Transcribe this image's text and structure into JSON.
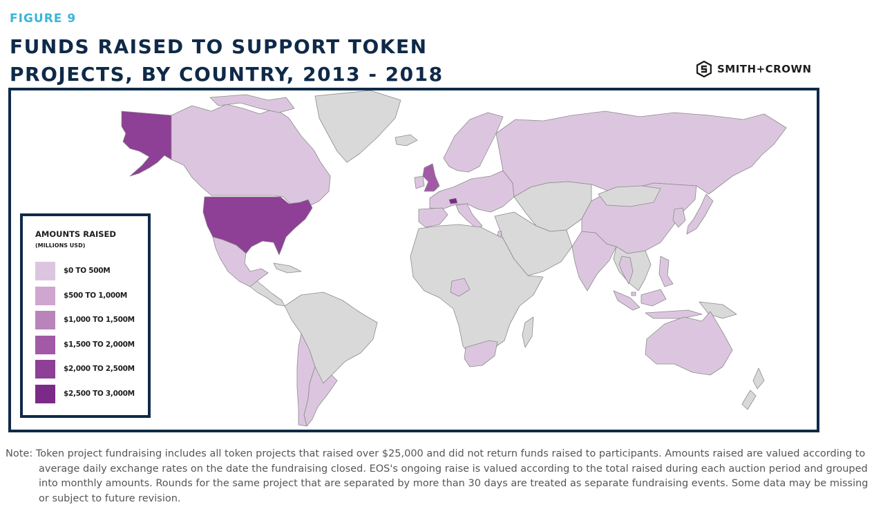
{
  "figure_label": "FIGURE 9",
  "title_lines": [
    "FUNDS RAISED TO SUPPORT TOKEN",
    "PROJECTS, BY COUNTRY, 2013 - 2018"
  ],
  "brand": {
    "name": "SMITH+CROWN",
    "icon": "smith-crown-logo-icon"
  },
  "legend": {
    "title": "AMOUNTS RAISED",
    "subtitle": "(MILLIONS USD)",
    "items": [
      {
        "label": "$0 TO 500M",
        "color": "#dcc6df"
      },
      {
        "label": "$500 TO 1,000M",
        "color": "#cfa6cf"
      },
      {
        "label": "$1,000 TO 1,500M",
        "color": "#b884ba"
      },
      {
        "label": "$1,500 TO 2,000M",
        "color": "#a25aa6"
      },
      {
        "label": "$2,000 TO 2,500M",
        "color": "#8e3f96"
      },
      {
        "label": "$2,500 TO 3,000M",
        "color": "#7c2a87"
      }
    ]
  },
  "no_data_color": "#d9d9d9",
  "note": "Note: Token project fundraising includes all token projects that raised over $25,000 and did not return funds raised to participants. Amounts raised are valued according to average daily exchange rates on the date the fundraising closed. EOS's ongoing raise is valued according to the total raised during each auction period and grouped into monthly amounts. Rounds for the same project that are separated by more than 30 days are treated as separate fundraising events. Some data may be missing or subject to future revision.",
  "countries": [
    {
      "name": "Alaska",
      "tier": 4
    },
    {
      "name": "Canada",
      "tier": 0
    },
    {
      "name": "Greenland",
      "tier": -1
    },
    {
      "name": "United States",
      "tier": 4
    },
    {
      "name": "Mexico",
      "tier": 0
    },
    {
      "name": "Central America",
      "tier": -1
    },
    {
      "name": "Caribbean",
      "tier": -1
    },
    {
      "name": "South America",
      "tier": -1
    },
    {
      "name": "Argentina",
      "tier": 0
    },
    {
      "name": "Chile",
      "tier": 0
    },
    {
      "name": "Iceland",
      "tier": -1
    },
    {
      "name": "United Kingdom",
      "tier": 3
    },
    {
      "name": "Ireland",
      "tier": 0
    },
    {
      "name": "Scandinavia",
      "tier": 0
    },
    {
      "name": "Europe",
      "tier": 0
    },
    {
      "name": "Switzerland",
      "tier": 5
    },
    {
      "name": "Iberia",
      "tier": 0
    },
    {
      "name": "Italy",
      "tier": 0
    },
    {
      "name": "Russia",
      "tier": 0
    },
    {
      "name": "Central Asia",
      "tier": -1
    },
    {
      "name": "Middle East",
      "tier": -1
    },
    {
      "name": "Israel",
      "tier": 0
    },
    {
      "name": "Africa",
      "tier": -1
    },
    {
      "name": "South Africa",
      "tier": 0
    },
    {
      "name": "Nigeria",
      "tier": 0
    },
    {
      "name": "India",
      "tier": 0
    },
    {
      "name": "China",
      "tier": 0
    },
    {
      "name": "Mongolia",
      "tier": -1
    },
    {
      "name": "Korea",
      "tier": 0
    },
    {
      "name": "Japan",
      "tier": 0
    },
    {
      "name": "Southeast Asia",
      "tier": -1
    },
    {
      "name": "Thailand",
      "tier": 0
    },
    {
      "name": "Singapore",
      "tier": 0
    },
    {
      "name": "Indonesia",
      "tier": 0
    },
    {
      "name": "Philippines",
      "tier": 0
    },
    {
      "name": "Papua New Guinea",
      "tier": -1
    },
    {
      "name": "Australia",
      "tier": 0
    },
    {
      "name": "New Zealand",
      "tier": -1
    },
    {
      "name": "Madagascar",
      "tier": -1
    }
  ]
}
